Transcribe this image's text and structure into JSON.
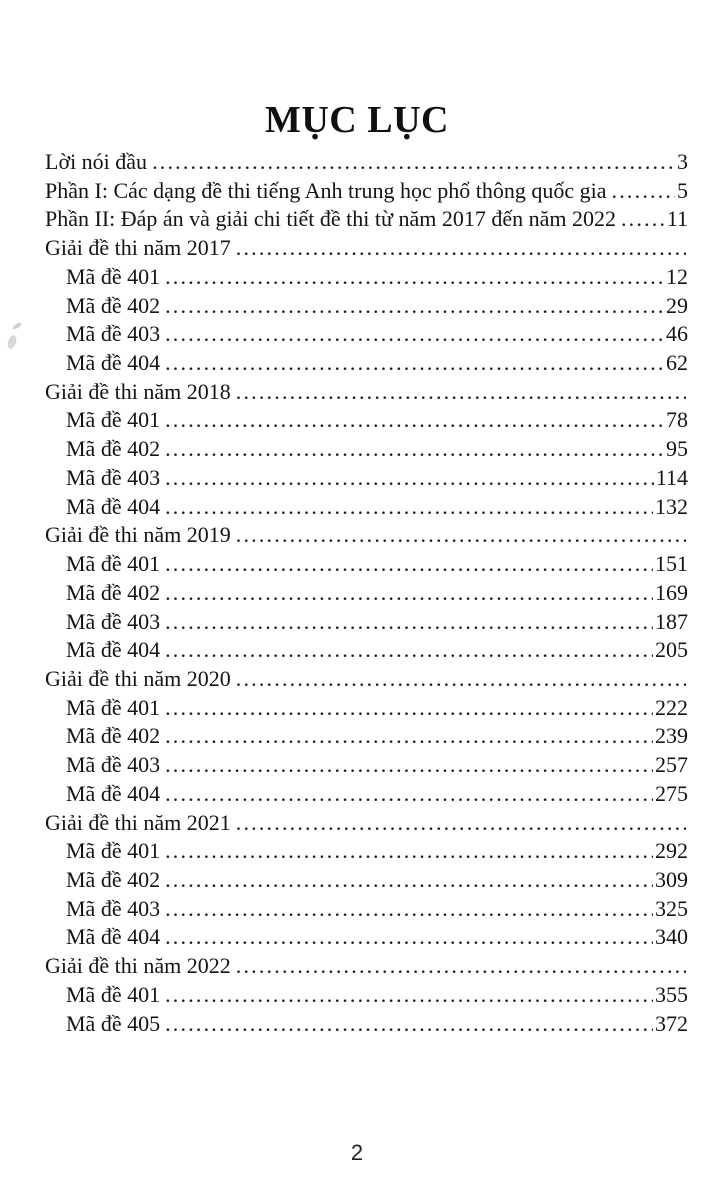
{
  "document": {
    "title": "MỤC LỤC",
    "footer_page_number": "2"
  },
  "toc": {
    "entries": [
      {
        "label": "Lời nói đầu",
        "page": "3",
        "indent": 0
      },
      {
        "label": "Phần I: Các dạng đề thi tiếng Anh trung học phổ thông quốc gia",
        "page": "5",
        "indent": 0
      },
      {
        "label": "Phần II: Đáp án và giải chi tiết đề thi từ năm 2017 đến năm 2022",
        "page": "11",
        "indent": 0
      },
      {
        "label": "Giải đề thi năm 2017",
        "page": "",
        "indent": 0
      },
      {
        "label": "Mã đề 401",
        "page": "12",
        "indent": 1
      },
      {
        "label": "Mã đề 402",
        "page": "29",
        "indent": 1
      },
      {
        "label": "Mã đề 403",
        "page": "46",
        "indent": 1
      },
      {
        "label": "Mã đề 404",
        "page": "62",
        "indent": 1
      },
      {
        "label": "Giải đề thi năm 2018",
        "page": "",
        "indent": 0
      },
      {
        "label": "Mã đề 401",
        "page": "78",
        "indent": 1
      },
      {
        "label": "Mã đề 402",
        "page": "95",
        "indent": 1
      },
      {
        "label": "Mã đề 403",
        "page": "114",
        "indent": 1
      },
      {
        "label": "Mã đề 404",
        "page": "132",
        "indent": 1
      },
      {
        "label": "Giải đề thi năm 2019",
        "page": "",
        "indent": 0
      },
      {
        "label": "Mã đề 401",
        "page": "151",
        "indent": 1
      },
      {
        "label": "Mã đề 402",
        "page": "169",
        "indent": 1
      },
      {
        "label": "Mã đề 403",
        "page": "187",
        "indent": 1
      },
      {
        "label": "Mã đề 404",
        "page": "205",
        "indent": 1
      },
      {
        "label": "Giải đề thi năm 2020",
        "page": "",
        "indent": 0
      },
      {
        "label": "Mã đề 401",
        "page": "222",
        "indent": 1
      },
      {
        "label": "Mã đề 402",
        "page": "239",
        "indent": 1
      },
      {
        "label": "Mã đề 403",
        "page": "257",
        "indent": 1
      },
      {
        "label": "Mã đề 404",
        "page": "275",
        "indent": 1
      },
      {
        "label": "Giải đề thi năm 2021",
        "page": "",
        "indent": 0
      },
      {
        "label": "Mã đề 401",
        "page": "292",
        "indent": 1
      },
      {
        "label": "Mã đề 402",
        "page": "309",
        "indent": 1
      },
      {
        "label": "Mã đề 403",
        "page": "325",
        "indent": 1
      },
      {
        "label": "Mã đề 404",
        "page": "340",
        "indent": 1
      },
      {
        "label": "Giải đề thi năm 2022",
        "page": "",
        "indent": 0
      },
      {
        "label": "Mã đề 401",
        "page": "355",
        "indent": 1
      },
      {
        "label": "Mã đề 405",
        "page": "372",
        "indent": 1
      }
    ]
  },
  "colors": {
    "page_background": "#ffffff",
    "text": "#141414"
  }
}
